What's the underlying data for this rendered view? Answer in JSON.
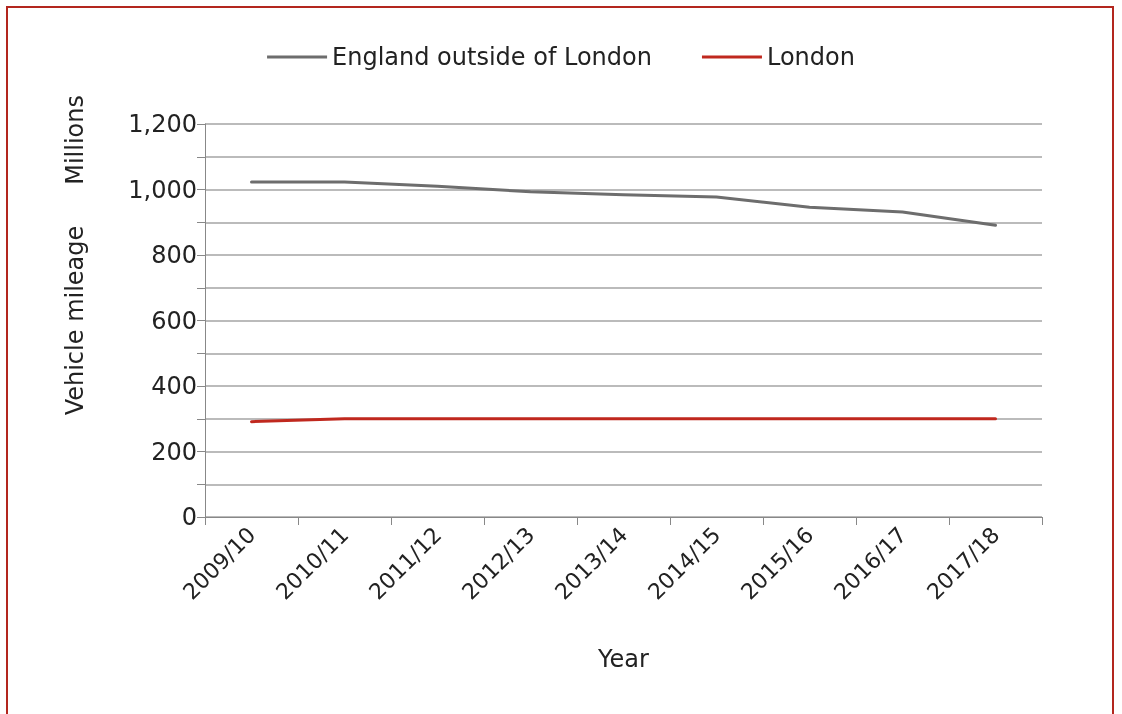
{
  "chart_data": {
    "type": "line",
    "xlabel": "Year",
    "ylabel": "Vehicle mileage",
    "y2label": "Millions",
    "categories": [
      "2009/10",
      "2010/11",
      "2011/12",
      "2012/13",
      "2013/14",
      "2014/15",
      "2015/16",
      "2016/17",
      "2017/18"
    ],
    "series": [
      {
        "name": "England outside of London",
        "color": "#6d6d6d",
        "values": [
          1023,
          1023,
          1010,
          993,
          984,
          977,
          946,
          931,
          891
        ]
      },
      {
        "name": "London",
        "color": "#c0281e",
        "values": [
          291,
          300,
          300,
          300,
          300,
          300,
          300,
          300,
          300
        ]
      }
    ],
    "ylim": [
      0,
      1200
    ],
    "yticks": [
      0,
      {
        "value": 100,
        "label": null
      },
      200,
      {
        "value": 300,
        "label": null
      },
      400,
      {
        "value": 500,
        "label": null
      },
      600,
      {
        "value": 700,
        "label": null
      },
      800,
      {
        "value": 900,
        "label": null
      },
      {
        "value": 1000,
        "label": "1,000"
      },
      {
        "value": 1100,
        "label": null
      },
      {
        "value": 1200,
        "label": "1,200"
      }
    ],
    "grid": "y",
    "legend": "top",
    "marker": "none",
    "line_style": "solid"
  }
}
